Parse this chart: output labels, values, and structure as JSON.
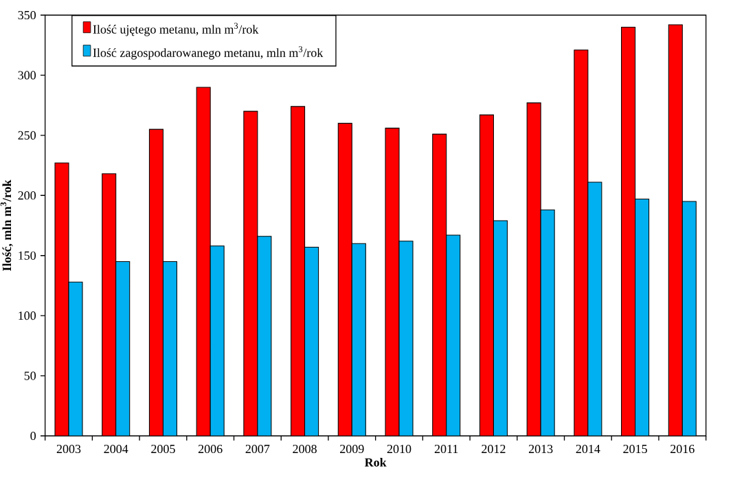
{
  "chart_data": {
    "type": "bar",
    "xlabel": "Rok",
    "ylabel": "Ilość, mln m$^{3}$/rok",
    "categories": [
      "2003",
      "2004",
      "2005",
      "2006",
      "2007",
      "2008",
      "2009",
      "2010",
      "2011",
      "2012",
      "2013",
      "2014",
      "2015",
      "2016"
    ],
    "series": [
      {
        "name": "Ilość ujętego metanu,  mln m$^{3}$/rok",
        "color": "#ff0000",
        "values": [
          227,
          218,
          255,
          290,
          270,
          274,
          260,
          256,
          251,
          267,
          277,
          321,
          340,
          342
        ]
      },
      {
        "name": "Ilość zagospodarowanego metanu,  mln m$^{3}$/rok",
        "color": "#00b0f0",
        "values": [
          128,
          145,
          145,
          158,
          166,
          157,
          160,
          162,
          167,
          179,
          188,
          211,
          197,
          195
        ]
      }
    ],
    "ylim": [
      0,
      350
    ],
    "yticks": [
      0,
      50,
      100,
      150,
      200,
      250,
      300,
      350
    ],
    "grid": false,
    "legend": "top left"
  }
}
